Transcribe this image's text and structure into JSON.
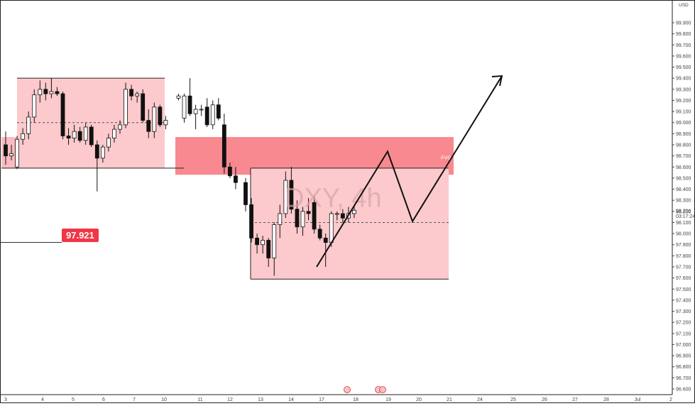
{
  "chart_data": {
    "type": "candlestick",
    "symbol": "DXY",
    "timeframe": "4h",
    "watermark": "DXY, 4h",
    "currency": "USD",
    "y_ticks": [
      "99.900",
      "99.800",
      "99.700",
      "99.600",
      "99.500",
      "99.400",
      "99.300",
      "99.200",
      "99.100",
      "99.000",
      "98.900",
      "98.800",
      "98.700",
      "98.600",
      "98.500",
      "98.400",
      "98.300",
      "98.200",
      "98.100",
      "98.000",
      "97.900",
      "97.800",
      "97.700",
      "97.600",
      "97.500",
      "97.400",
      "97.300",
      "97.200",
      "97.100",
      "97.000",
      "96.900",
      "96.800",
      "96.700",
      "96.600"
    ],
    "y_range": [
      96.55,
      100.05
    ],
    "x_ticks": [
      "3",
      "4",
      "5",
      "6",
      "7",
      "10",
      "11",
      "12",
      "13",
      "14",
      "17",
      "18",
      "19",
      "20",
      "21",
      "24",
      "25",
      "26",
      "27",
      "28",
      "Jul",
      "2"
    ],
    "current_price": "98.206",
    "countdown": "03:17:24",
    "price_label": "97.921",
    "zone_label": "-FVG",
    "candles": [
      [
        98.8,
        98.92,
        98.62,
        98.7
      ],
      [
        98.7,
        98.8,
        98.66,
        98.72
      ],
      [
        98.6,
        98.88,
        98.58,
        98.85
      ],
      [
        98.85,
        98.95,
        98.8,
        98.9
      ],
      [
        98.9,
        99.1,
        98.85,
        99.05
      ],
      [
        99.05,
        99.3,
        99.0,
        99.25
      ],
      [
        99.25,
        99.38,
        99.18,
        99.3
      ],
      [
        99.3,
        99.36,
        99.2,
        99.26
      ],
      [
        99.26,
        99.4,
        99.22,
        99.28
      ],
      [
        99.28,
        99.32,
        99.24,
        99.26
      ],
      [
        99.26,
        99.28,
        98.85,
        98.88
      ],
      [
        98.88,
        98.95,
        98.8,
        98.86
      ],
      [
        98.86,
        98.98,
        98.82,
        98.92
      ],
      [
        98.92,
        98.96,
        98.82,
        98.84
      ],
      [
        98.84,
        99.0,
        98.8,
        98.96
      ],
      [
        98.96,
        98.98,
        98.78,
        98.8
      ],
      [
        98.8,
        98.84,
        98.38,
        98.68
      ],
      [
        98.68,
        98.8,
        98.64,
        98.78
      ],
      [
        98.78,
        98.9,
        98.74,
        98.86
      ],
      [
        98.86,
        98.98,
        98.82,
        98.94
      ],
      [
        98.94,
        99.02,
        98.9,
        98.98
      ],
      [
        98.98,
        99.36,
        98.95,
        99.3
      ],
      [
        99.3,
        99.34,
        99.2,
        99.24
      ],
      [
        99.24,
        99.28,
        99.18,
        99.26
      ],
      [
        99.26,
        99.3,
        99.0,
        99.02
      ],
      [
        99.02,
        99.12,
        98.86,
        98.92
      ],
      [
        98.92,
        99.18,
        98.86,
        99.14
      ],
      [
        99.14,
        99.16,
        98.96,
        98.98
      ],
      [
        98.98,
        99.06,
        98.94,
        99.02
      ],
      [
        99.22,
        99.26,
        99.2,
        99.24
      ],
      [
        99.04,
        99.26,
        99.0,
        99.24
      ],
      [
        99.24,
        99.4,
        99.06,
        99.08
      ],
      [
        99.08,
        99.16,
        98.94,
        99.12
      ],
      [
        99.12,
        99.16,
        99.06,
        99.12
      ],
      [
        99.14,
        99.22,
        98.96,
        98.98
      ],
      [
        98.98,
        99.2,
        98.94,
        99.16
      ],
      [
        99.16,
        99.22,
        99.02,
        99.04
      ],
      [
        98.98,
        99.08,
        98.54,
        98.6
      ],
      [
        98.6,
        98.64,
        98.5,
        98.52
      ],
      [
        98.52,
        98.6,
        98.4,
        98.46
      ],
      [
        98.46,
        98.5,
        98.2,
        98.26
      ],
      [
        98.26,
        98.32,
        97.92,
        97.96
      ],
      [
        97.96,
        98.0,
        97.82,
        97.9
      ],
      [
        97.9,
        97.98,
        97.82,
        97.94
      ],
      [
        97.94,
        97.96,
        97.7,
        97.78
      ],
      [
        97.78,
        98.1,
        97.62,
        98.08
      ],
      [
        98.08,
        98.26,
        97.96,
        98.18
      ],
      [
        98.18,
        98.56,
        98.14,
        98.48
      ],
      [
        98.48,
        98.6,
        98.18,
        98.22
      ],
      [
        98.22,
        98.3,
        98.0,
        98.06
      ],
      [
        98.06,
        98.24,
        97.98,
        98.2
      ],
      [
        98.2,
        98.32,
        98.12,
        98.18
      ],
      [
        98.28,
        98.34,
        98.0,
        98.04
      ],
      [
        98.04,
        98.08,
        97.94,
        97.96
      ],
      [
        97.96,
        98.0,
        97.7,
        97.92
      ],
      [
        97.92,
        98.2,
        97.88,
        98.18
      ],
      [
        98.18,
        98.2,
        98.12,
        98.18
      ],
      [
        98.18,
        98.22,
        98.1,
        98.14
      ],
      [
        98.14,
        98.24,
        98.1,
        98.18
      ],
      [
        98.18,
        98.26,
        98.14,
        98.21
      ]
    ],
    "zones": [
      {
        "name": "left-box-small",
        "price_top": 98.87,
        "price_bottom": 98.59,
        "color": "#f9bcc0"
      },
      {
        "name": "supply-box-upper-left",
        "price_top": 99.4,
        "price_bottom": 98.59,
        "color": "#fcc9cc"
      },
      {
        "name": "fvg-zone",
        "price_top": 98.87,
        "price_bottom": 98.53,
        "color": "#f88990"
      },
      {
        "name": "demand-box",
        "price_top": 98.59,
        "price_bottom": 97.59,
        "color": "#fcc9cc"
      }
    ],
    "projection_path": [
      [
        97.7
      ],
      [
        98.74
      ],
      [
        98.11
      ],
      [
        99.42
      ]
    ],
    "accent_color": "#f23645"
  }
}
